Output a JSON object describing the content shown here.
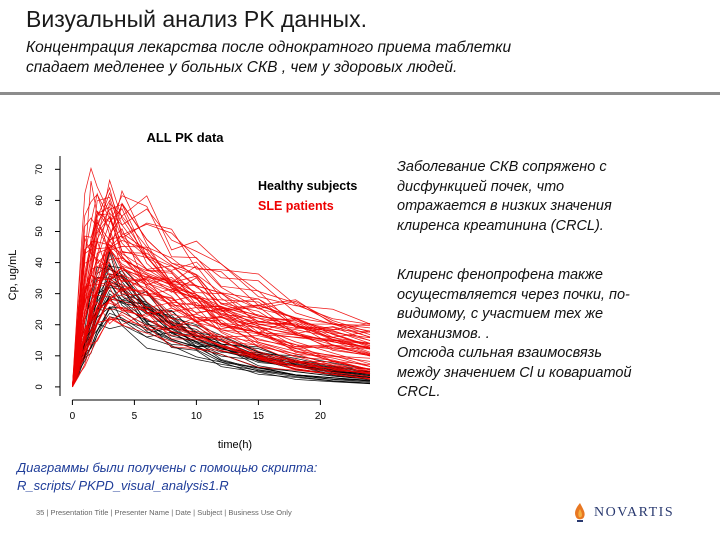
{
  "slide": {
    "title": "Визуальный анализ PK данных.",
    "subtitle_lines": [
      "Концентрация лекарства после однократного приема таблетки",
      "спадает медленее у больных СКВ , чем у здоровых людей."
    ],
    "right_paragraph_1": [
      "Заболевание СКВ сопряжено с",
      "дисфункцией почек, что",
      "отражается в низких значения",
      "клиренса креатинина (CRCL)."
    ],
    "right_paragraph_2": [
      "Клиренс фенопрофена также",
      "осуществляется через почки, по-",
      "видимому, с участием тех же",
      "механизмов. .",
      "Отсюда сильная взаимосвязь",
      "между значением Cl  и ковариатой",
      "CRCL."
    ],
    "note_lines": [
      "Диаграммы были получены с помощью скрипта:",
      "R_scripts/ PKPD_visual_analysis1.R"
    ],
    "footer": "35 | Presentation Title | Presenter Name | Date | Subject | Business Use Only",
    "logo_text": "NOVARTIS",
    "colors": {
      "accent_rule": "#8c8c8c",
      "note": "#1f3d99",
      "logo": "#2a3a70",
      "logo_flame": "#e87722"
    }
  },
  "chart_data": {
    "type": "line",
    "title": "ALL PK data",
    "xlabel": "time(h)",
    "ylabel": "Cp, ug/mL",
    "xlim": [
      -1,
      24
    ],
    "ylim": [
      -1,
      73
    ],
    "xticks": [
      0,
      5,
      10,
      15,
      20
    ],
    "yticks": [
      0,
      10,
      20,
      30,
      40,
      50,
      60,
      70
    ],
    "grid": false,
    "legend_position": "top-right",
    "series": [
      {
        "name": "Healthy subjects",
        "color": "#000000",
        "count": 28,
        "peak_range": [
          22,
          40
        ],
        "tmax_range": [
          2,
          3.5
        ],
        "end_value_range": [
          1,
          6
        ]
      },
      {
        "name": "SLE patients",
        "color": "#ee0000",
        "count": 62,
        "peak_range": [
          22,
          68
        ],
        "tmax_range": [
          1,
          4
        ],
        "end_value_range": [
          2,
          21
        ]
      }
    ]
  }
}
